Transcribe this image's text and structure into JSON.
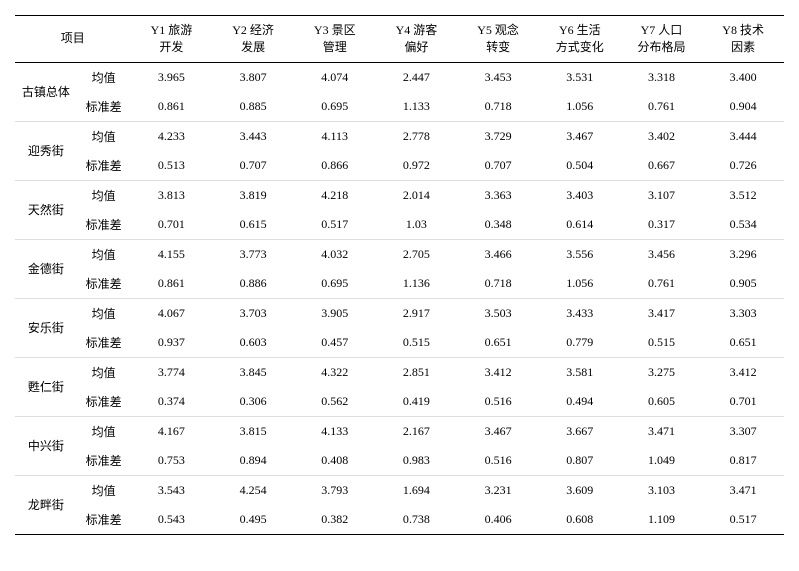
{
  "header": {
    "project": "项目",
    "cols": [
      "Y1 旅游\n开发",
      "Y2 经济\n发展",
      "Y3 景区\n管理",
      "Y4 游客\n偏好",
      "Y5 观念\n转变",
      "Y6 生活\n方式变化",
      "Y7 人口\n分布格局",
      "Y8 技术\n因素"
    ]
  },
  "stats": {
    "mean": "均值",
    "sd": "标准差"
  },
  "groups": [
    {
      "name": "古镇总体",
      "mean": [
        "3.965",
        "3.807",
        "4.074",
        "2.447",
        "3.453",
        "3.531",
        "3.318",
        "3.400"
      ],
      "sd": [
        "0.861",
        "0.885",
        "0.695",
        "1.133",
        "0.718",
        "1.056",
        "0.761",
        "0.904"
      ]
    },
    {
      "name": "迎秀街",
      "mean": [
        "4.233",
        "3.443",
        "4.113",
        "2.778",
        "3.729",
        "3.467",
        "3.402",
        "3.444"
      ],
      "sd": [
        "0.513",
        "0.707",
        "0.866",
        "0.972",
        "0.707",
        "0.504",
        "0.667",
        "0.726"
      ]
    },
    {
      "name": "天然街",
      "mean": [
        "3.813",
        "3.819",
        "4.218",
        "2.014",
        "3.363",
        "3.403",
        "3.107",
        "3.512"
      ],
      "sd": [
        "0.701",
        "0.615",
        "0.517",
        "1.03",
        "0.348",
        "0.614",
        "0.317",
        "0.534"
      ]
    },
    {
      "name": "金德街",
      "mean": [
        "4.155",
        "3.773",
        "4.032",
        "2.705",
        "3.466",
        "3.556",
        "3.456",
        "3.296"
      ],
      "sd": [
        "0.861",
        "0.886",
        "0.695",
        "1.136",
        "0.718",
        "1.056",
        "0.761",
        "0.905"
      ]
    },
    {
      "name": "安乐街",
      "mean": [
        "4.067",
        "3.703",
        "3.905",
        "2.917",
        "3.503",
        "3.433",
        "3.417",
        "3.303"
      ],
      "sd": [
        "0.937",
        "0.603",
        "0.457",
        "0.515",
        "0.651",
        "0.779",
        "0.515",
        "0.651"
      ]
    },
    {
      "name": "甦仁街",
      "mean": [
        "3.774",
        "3.845",
        "4.322",
        "2.851",
        "3.412",
        "3.581",
        "3.275",
        "3.412"
      ],
      "sd": [
        "0.374",
        "0.306",
        "0.562",
        "0.419",
        "0.516",
        "0.494",
        "0.605",
        "0.701"
      ]
    },
    {
      "name": "中兴街",
      "mean": [
        "4.167",
        "3.815",
        "4.133",
        "2.167",
        "3.467",
        "3.667",
        "3.471",
        "3.307"
      ],
      "sd": [
        "0.753",
        "0.894",
        "0.408",
        "0.983",
        "0.516",
        "0.807",
        "1.049",
        "0.817"
      ]
    },
    {
      "name": "龙畔街",
      "mean": [
        "3.543",
        "4.254",
        "3.793",
        "1.694",
        "3.231",
        "3.609",
        "3.103",
        "3.471"
      ],
      "sd": [
        "0.543",
        "0.495",
        "0.382",
        "0.738",
        "0.406",
        "0.608",
        "1.109",
        "0.517"
      ]
    }
  ]
}
